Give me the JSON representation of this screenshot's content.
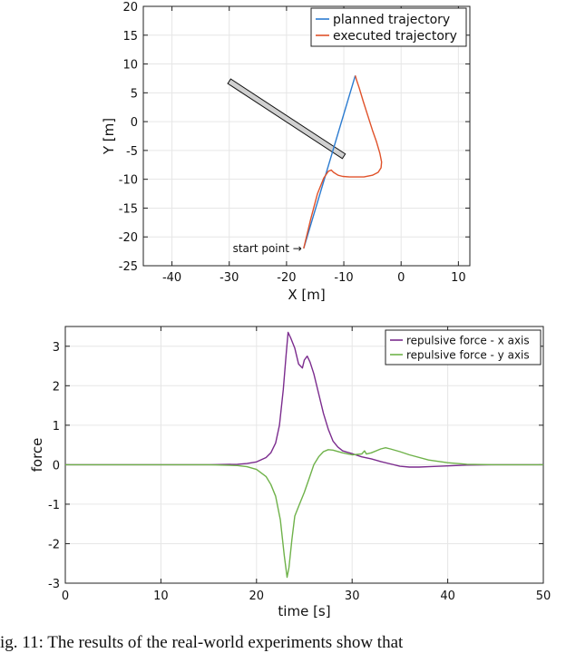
{
  "caption": "ig. 11: The results of the real-world experiments show that",
  "chart_data": [
    {
      "type": "line",
      "xlabel": "X [m]",
      "ylabel": "Y [m]",
      "xlim": [
        -45,
        12
      ],
      "ylim": [
        -25,
        20
      ],
      "xticks": [
        -40,
        -30,
        -20,
        -10,
        0,
        10
      ],
      "yticks": [
        -25,
        -20,
        -15,
        -10,
        -5,
        0,
        5,
        10,
        15,
        20
      ],
      "grid": true,
      "legend": "top-right",
      "obstacle": {
        "from": [
          -30,
          7
        ],
        "to": [
          -10,
          -6
        ],
        "color": "#d0d0d0"
      },
      "annotation": {
        "text": "start point →",
        "at": [
          -17,
          -22
        ]
      },
      "series": [
        {
          "name": "planned trajectory",
          "color": "#2b7bd0",
          "x": [
            -17.0,
            -8.0
          ],
          "y": [
            -22.0,
            8.0
          ]
        },
        {
          "name": "executed trajectory",
          "color": "#e0522a",
          "x": [
            -17.0,
            -15.8,
            -14.6,
            -13.5,
            -12.7,
            -12.2,
            -11.8,
            -11.0,
            -10.2,
            -9.0,
            -8.0,
            -6.5,
            -5.0,
            -4.0,
            -3.5,
            -3.4,
            -3.7,
            -4.3,
            -5.0,
            -5.8,
            -6.6,
            -7.3,
            -7.8,
            -8.0
          ],
          "y": [
            -22.0,
            -17.0,
            -12.5,
            -9.8,
            -8.6,
            -8.4,
            -8.8,
            -9.3,
            -9.5,
            -9.6,
            -9.6,
            -9.6,
            -9.3,
            -8.8,
            -8.0,
            -7.0,
            -5.5,
            -3.5,
            -1.5,
            1.0,
            3.5,
            5.8,
            7.3,
            8.0
          ]
        }
      ]
    },
    {
      "type": "line",
      "xlabel": "time [s]",
      "ylabel": "force",
      "xlim": [
        0,
        50
      ],
      "ylim": [
        -3,
        3.5
      ],
      "xticks": [
        0,
        10,
        20,
        30,
        40,
        50
      ],
      "yticks": [
        -3,
        -2,
        -1,
        0,
        1,
        2,
        3
      ],
      "grid": true,
      "legend": "top-right",
      "series": [
        {
          "name": "repulsive force - x axis",
          "color": "#7b2c8e",
          "x": [
            0,
            15,
            18,
            19,
            20,
            21,
            21.5,
            22,
            22.4,
            22.8,
            23.1,
            23.3,
            23.6,
            24.0,
            24.4,
            24.8,
            25.0,
            25.3,
            25.6,
            26.0,
            26.5,
            27.0,
            27.5,
            28.0,
            28.5,
            29.0,
            30.0,
            31.0,
            32.0,
            33.0,
            34.0,
            35.0,
            36.0,
            37.0,
            38.0,
            40.0,
            42.0,
            45.0,
            50.0
          ],
          "y": [
            0,
            0,
            0.01,
            0.03,
            0.07,
            0.18,
            0.3,
            0.55,
            1.0,
            1.9,
            2.8,
            3.35,
            3.2,
            2.95,
            2.55,
            2.45,
            2.65,
            2.75,
            2.6,
            2.3,
            1.8,
            1.3,
            0.9,
            0.6,
            0.45,
            0.35,
            0.28,
            0.2,
            0.15,
            0.08,
            0.02,
            -0.04,
            -0.06,
            -0.06,
            -0.05,
            -0.03,
            -0.01,
            0,
            0
          ]
        },
        {
          "name": "repulsive force - y axis",
          "color": "#6fb24a",
          "x": [
            0,
            15,
            18,
            19,
            20,
            21,
            21.5,
            22,
            22.5,
            22.9,
            23.2,
            23.4,
            23.7,
            24.0,
            24.5,
            25.0,
            25.5,
            26.0,
            26.5,
            27.0,
            27.5,
            28.0,
            29.0,
            30.0,
            31.0,
            31.3,
            31.5,
            32.0,
            33.0,
            33.5,
            34.0,
            35.0,
            36.0,
            38.0,
            40.0,
            42.0,
            45.0,
            50.0
          ],
          "y": [
            0,
            0,
            -0.02,
            -0.05,
            -0.12,
            -0.3,
            -0.5,
            -0.8,
            -1.4,
            -2.3,
            -2.85,
            -2.6,
            -1.9,
            -1.3,
            -1.0,
            -0.7,
            -0.35,
            0.0,
            0.2,
            0.33,
            0.38,
            0.37,
            0.3,
            0.25,
            0.27,
            0.35,
            0.27,
            0.3,
            0.4,
            0.43,
            0.4,
            0.33,
            0.25,
            0.12,
            0.05,
            0.01,
            0,
            0
          ]
        }
      ]
    }
  ]
}
